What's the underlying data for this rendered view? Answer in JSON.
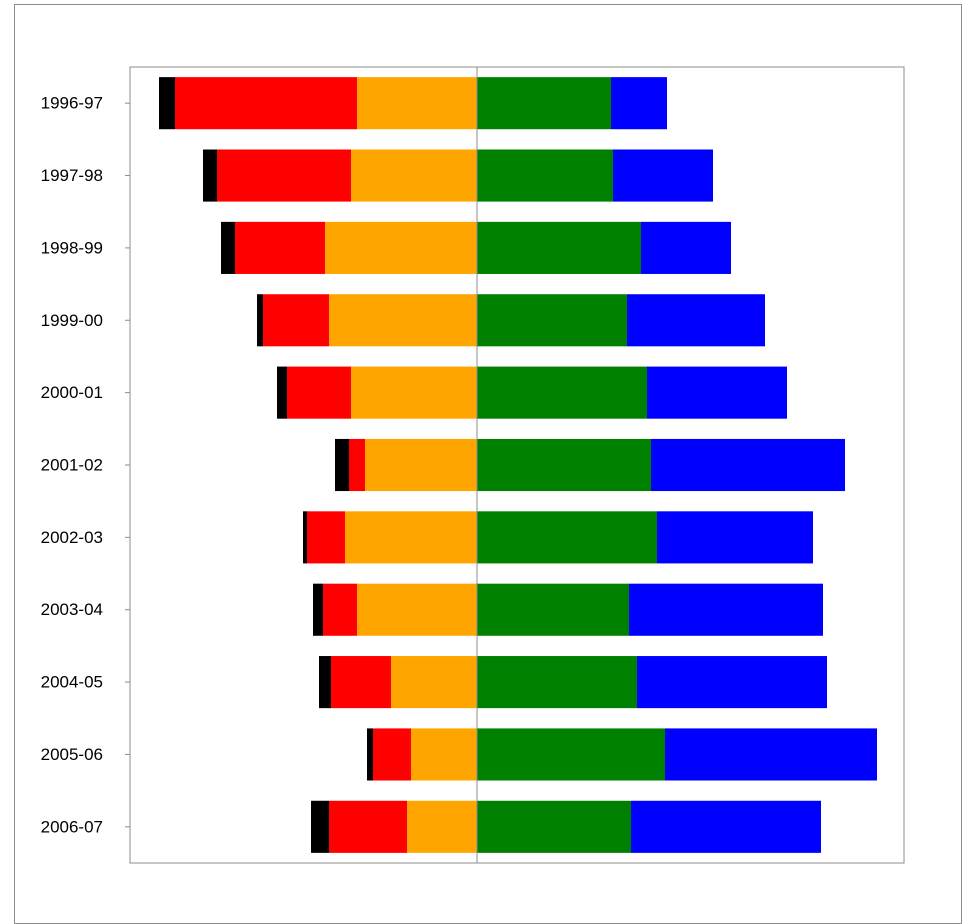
{
  "chart_data": {
    "type": "bar",
    "orientation": "horizontal",
    "stacking": "diverging",
    "title": "",
    "xlabel": "",
    "ylabel": "",
    "grid": false,
    "legend": "none",
    "categories": [
      "1996-97",
      "1997-98",
      "1998-99",
      "1999-00",
      "2000-01",
      "2001-02",
      "2002-03",
      "2003-04",
      "2004-05",
      "2005-06",
      "2006-07"
    ],
    "xlim": [
      -347,
      427
    ],
    "left_series": [
      {
        "color": "#FFA500",
        "values": [
          120,
          126,
          152,
          148,
          126,
          112,
          132,
          120,
          86,
          66,
          70
        ]
      },
      {
        "color": "#FF0000",
        "values": [
          182,
          134,
          90,
          66,
          64,
          16,
          38,
          34,
          60,
          38,
          78
        ]
      },
      {
        "color": "#000000",
        "values": [
          16,
          14,
          14,
          6,
          10,
          14,
          4,
          10,
          12,
          6,
          18
        ]
      }
    ],
    "right_series": [
      {
        "color": "#008000",
        "values": [
          134,
          136,
          164,
          150,
          170,
          174,
          180,
          152,
          160,
          188,
          154
        ]
      },
      {
        "color": "#0000FF",
        "values": [
          56,
          100,
          90,
          138,
          140,
          194,
          156,
          194,
          190,
          212,
          190
        ]
      }
    ]
  }
}
